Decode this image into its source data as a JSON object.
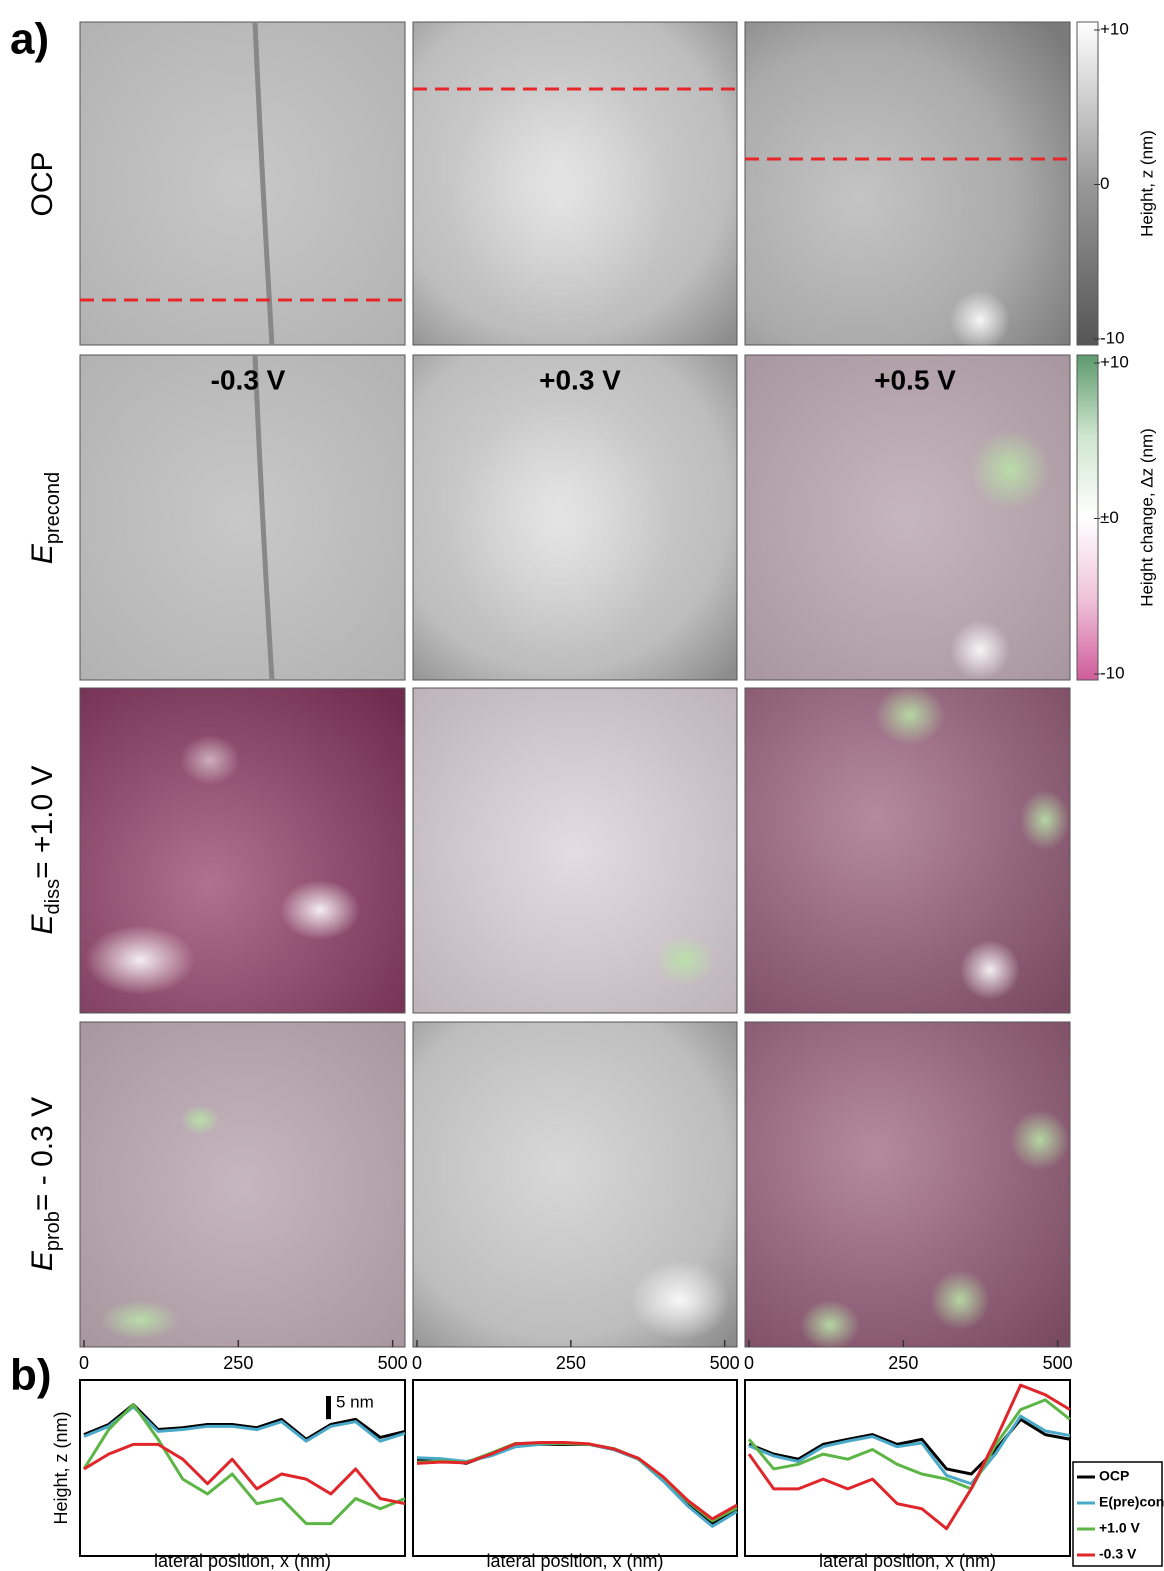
{
  "figure": {
    "panel_a": "a)",
    "panel_b": "b)",
    "columns": [
      "-0.3 V",
      "+0.3 V",
      "+0.5 V"
    ],
    "rows": [
      {
        "label": "OCP"
      },
      {
        "symbol": "E",
        "subscript": "precond"
      },
      {
        "symbol": "E",
        "subscript": "diss",
        "suffix": "= +1.0 V"
      },
      {
        "symbol": "E",
        "subscript": "prob",
        "suffix": "= - 0.3 V"
      }
    ],
    "colorbars": [
      {
        "label": "Height, z (nm)",
        "lim": [
          -10,
          10
        ],
        "ticks": [
          {
            "value": 10,
            "label": "+10"
          },
          0,
          -10
        ]
      },
      {
        "label": "Height change, Δz (nm)",
        "lim": [
          -10,
          10
        ],
        "ticks": [
          {
            "value": 10,
            "label": "+10"
          },
          {
            "value": 0,
            "label": "±0"
          },
          -10
        ]
      }
    ]
  },
  "chart_data": [
    {
      "type": "line",
      "ylabel": "Height, z (nm)",
      "xlabel": "lateral position, x (nm)",
      "scale_bar": {
        "value": 5,
        "label": "5 nm"
      },
      "x": [
        0,
        40,
        80,
        120,
        160,
        200,
        240,
        280,
        320,
        360,
        400,
        440,
        480,
        520
      ],
      "xlim": [
        0,
        520
      ],
      "xticks": [
        0,
        250,
        500
      ],
      "ylim": [
        -20,
        18
      ],
      "series": [
        {
          "color": "#000000",
          "values": [
            6.2,
            8.4,
            12.7,
            7.3,
            7.7,
            8.4,
            8.4,
            7.7,
            9.5,
            5.2,
            8.4,
            9.5,
            5.6,
            6.9
          ]
        },
        {
          "color": "#4aa8c8",
          "values": [
            5.8,
            8.0,
            12.2,
            6.9,
            7.3,
            8.0,
            8.0,
            7.3,
            9.0,
            4.8,
            8.0,
            9.0,
            4.8,
            6.5
          ]
        },
        {
          "color": "#5db545",
          "values": [
            -1.2,
            7.3,
            12.7,
            5.2,
            -3.4,
            -6.6,
            -2.3,
            -8.7,
            -7.6,
            -13.0,
            -13.0,
            -7.6,
            -9.8,
            -7.6
          ]
        },
        {
          "color": "#e0262a",
          "values": [
            -1.2,
            2.0,
            4.1,
            4.1,
            0.9,
            -4.4,
            0.9,
            -5.5,
            -2.3,
            -3.4,
            -6.6,
            -1.2,
            -7.6,
            -8.7
          ]
        }
      ]
    },
    {
      "type": "line",
      "xlabel": "lateral position, x (nm)",
      "x": [
        0,
        40,
        80,
        120,
        160,
        200,
        240,
        280,
        320,
        360,
        400,
        440,
        480,
        520
      ],
      "xlim": [
        0,
        520
      ],
      "xticks": [
        0,
        250,
        500
      ],
      "ylim": [
        -20,
        18
      ],
      "series": [
        {
          "color": "#000000",
          "values": [
            0.9,
            0.9,
            0.0,
            2.0,
            4.1,
            4.1,
            4.1,
            4.1,
            3.0,
            0.9,
            -3.4,
            -8.7,
            -13.0,
            -9.8
          ]
        },
        {
          "color": "#4aa8c8",
          "values": [
            1.2,
            1.0,
            0.4,
            1.6,
            3.6,
            4.1,
            4.4,
            4.1,
            3.0,
            0.9,
            -3.8,
            -9.2,
            -13.6,
            -10.4
          ]
        },
        {
          "color": "#5db545",
          "values": [
            0.2,
            0.5,
            0.2,
            2.2,
            4.3,
            4.4,
            4.3,
            4.1,
            3.2,
            1.0,
            -3.0,
            -8.2,
            -12.4,
            -9.6
          ]
        },
        {
          "color": "#e0262a",
          "values": [
            0.0,
            0.3,
            0.1,
            2.0,
            4.2,
            4.5,
            4.5,
            4.2,
            3.1,
            1.1,
            -2.9,
            -8.0,
            -12.0,
            -9.0
          ]
        }
      ]
    },
    {
      "type": "line",
      "xlabel": "lateral position, x (nm)",
      "x": [
        0,
        40,
        80,
        120,
        160,
        200,
        240,
        280,
        320,
        360,
        400,
        440,
        480,
        520
      ],
      "xlim": [
        0,
        520
      ],
      "xticks": [
        0,
        250,
        500
      ],
      "ylim": [
        -20,
        18
      ],
      "series": [
        {
          "name": "OCP",
          "color": "#000000",
          "values": [
            4.1,
            2.0,
            0.9,
            4.1,
            5.2,
            6.2,
            4.1,
            5.2,
            -1.2,
            -2.3,
            3.0,
            9.5,
            6.2,
            5.2
          ]
        },
        {
          "name": "E(pre)con",
          "color": "#4aa8c8",
          "values": [
            3.8,
            1.6,
            0.4,
            3.6,
            4.8,
            5.8,
            3.6,
            4.4,
            -2.6,
            -4.4,
            2.2,
            10.2,
            7.0,
            6.0
          ]
        },
        {
          "name": "+1.0 V",
          "color": "#5db545",
          "values": [
            5.2,
            -1.2,
            -0.2,
            2.0,
            0.9,
            3.0,
            -0.2,
            -2.3,
            -3.4,
            -5.5,
            4.1,
            11.6,
            13.7,
            9.5
          ]
        },
        {
          "name": "-0.3 V",
          "color": "#e0262a",
          "values": [
            2.0,
            -5.5,
            -5.5,
            -3.4,
            -5.5,
            -3.4,
            -8.7,
            -9.8,
            -14.1,
            -5.5,
            5.2,
            16.9,
            14.8,
            11.6
          ]
        }
      ]
    }
  ]
}
